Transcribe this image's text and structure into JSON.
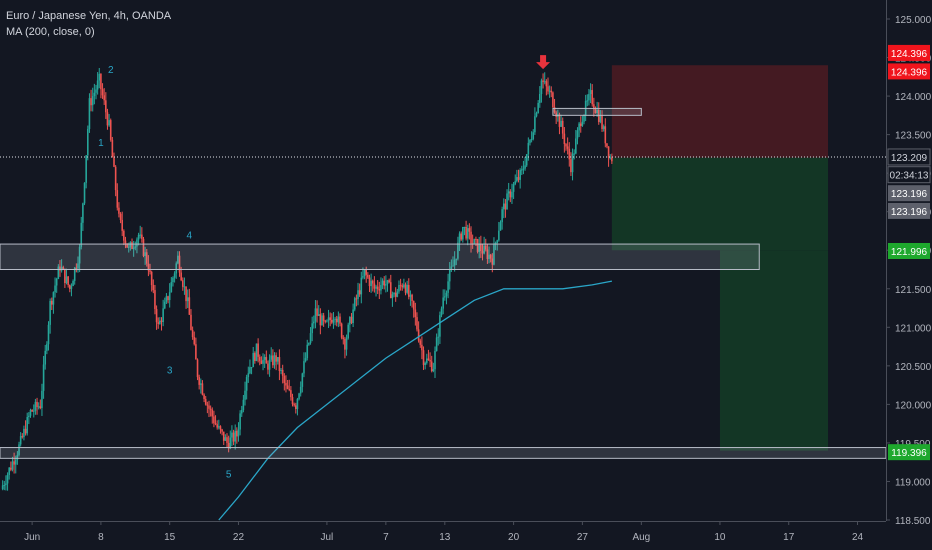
{
  "header": {
    "title": "Euro / Japanese Yen, 4h, OANDA",
    "indicator": "MA (200, close, 0)"
  },
  "colors": {
    "background": "#131722",
    "up": "#26a69a",
    "down": "#ef5350",
    "ma": "#2aa6c8",
    "grid_text": "#b2b5be",
    "stop_zone": "#4a1b22",
    "target_zone": "#143a26",
    "label_red": "#f0141c",
    "label_green": "#1ea82d",
    "label_dark": "#131722",
    "label_gray": "#5d606b"
  },
  "chart_data": {
    "type": "candlestick",
    "symbol": "EURJPY",
    "timeframe": "4h",
    "source": "OANDA",
    "y_axis": {
      "ticks": [
        "118.500",
        "119.000",
        "119.500",
        "120.000",
        "120.500",
        "121.000",
        "121.500",
        "122.000",
        "122.500",
        "123.000",
        "123.500",
        "124.000",
        "124.500",
        "125.000"
      ],
      "ylim": [
        118.5,
        125.25
      ],
      "position": "right"
    },
    "x_axis": {
      "ticks": [
        {
          "label": "Jun",
          "day": 1
        },
        {
          "label": "8",
          "day": 8
        },
        {
          "label": "15",
          "day": 15
        },
        {
          "label": "22",
          "day": 22
        },
        {
          "label": "Jul",
          "day": 31
        },
        {
          "label": "7",
          "day": 37
        },
        {
          "label": "13",
          "day": 43
        },
        {
          "label": "20",
          "day": 50
        },
        {
          "label": "27",
          "day": 57
        },
        {
          "label": "Aug",
          "day": 63
        },
        {
          "label": "10",
          "day": 71
        },
        {
          "label": "17",
          "day": 78
        },
        {
          "label": "24",
          "day": 85
        }
      ]
    },
    "price_path": [
      [
        -2,
        118.9
      ],
      [
        0,
        119.5
      ],
      [
        1,
        119.9
      ],
      [
        2,
        120.0
      ],
      [
        3,
        121.3
      ],
      [
        4,
        121.8
      ],
      [
        5,
        121.5
      ],
      [
        6,
        122.0
      ],
      [
        7,
        123.9
      ],
      [
        8,
        124.2
      ],
      [
        9,
        123.6
      ],
      [
        10,
        122.4
      ],
      [
        11,
        122.0
      ],
      [
        12,
        122.2
      ],
      [
        13,
        121.8
      ],
      [
        14,
        121.0
      ],
      [
        15,
        121.4
      ],
      [
        16,
        121.9
      ],
      [
        17,
        121.3
      ],
      [
        18,
        120.4
      ],
      [
        19,
        120.0
      ],
      [
        20,
        119.7
      ],
      [
        21,
        119.5
      ],
      [
        22,
        119.6
      ],
      [
        23,
        120.4
      ],
      [
        24,
        120.7
      ],
      [
        25,
        120.5
      ],
      [
        26,
        120.6
      ],
      [
        27,
        120.2
      ],
      [
        28,
        120.0
      ],
      [
        29,
        120.6
      ],
      [
        30,
        121.2
      ],
      [
        31,
        121.0
      ],
      [
        32,
        121.2
      ],
      [
        33,
        120.8
      ],
      [
        34,
        121.3
      ],
      [
        35,
        121.7
      ],
      [
        36,
        121.5
      ],
      [
        37,
        121.6
      ],
      [
        38,
        121.4
      ],
      [
        39,
        121.6
      ],
      [
        40,
        121.2
      ],
      [
        41,
        120.6
      ],
      [
        42,
        120.5
      ],
      [
        43,
        121.4
      ],
      [
        44,
        121.8
      ],
      [
        45,
        122.3
      ],
      [
        46,
        122.1
      ],
      [
        47,
        122.0
      ],
      [
        48,
        121.9
      ],
      [
        49,
        122.5
      ],
      [
        50,
        122.8
      ],
      [
        51,
        123.0
      ],
      [
        52,
        123.5
      ],
      [
        53,
        124.2
      ],
      [
        54,
        124.0
      ],
      [
        55,
        123.6
      ],
      [
        56,
        123.1
      ],
      [
        57,
        123.7
      ],
      [
        58,
        124.0
      ],
      [
        59,
        123.7
      ],
      [
        60,
        123.2
      ]
    ],
    "moving_average": {
      "name": "MA (200, close, 0)",
      "points": [
        [
          20,
          118.5
        ],
        [
          22,
          118.8
        ],
        [
          25,
          119.3
        ],
        [
          28,
          119.7
        ],
        [
          31,
          120.0
        ],
        [
          34,
          120.3
        ],
        [
          37,
          120.6
        ],
        [
          40,
          120.85
        ],
        [
          43,
          121.1
        ],
        [
          46,
          121.35
        ],
        [
          49,
          121.5
        ],
        [
          52,
          121.5
        ],
        [
          55,
          121.5
        ],
        [
          58,
          121.55
        ],
        [
          60,
          121.6
        ]
      ]
    },
    "zones": [
      {
        "name": "resistance-zone",
        "x_from": -3,
        "x_to": 75,
        "y_from": 121.75,
        "y_to": 122.08
      },
      {
        "name": "support-zone",
        "x_from": -3,
        "x_to": 90,
        "y_from": 119.3,
        "y_to": 119.44
      },
      {
        "name": "small-zone",
        "x_from": 54,
        "x_to": 63,
        "y_from": 123.75,
        "y_to": 123.84
      }
    ],
    "positions": [
      {
        "name": "stop-zone",
        "x_from": 60,
        "x_to": 82,
        "y_from": 123.2,
        "y_to": 124.4
      },
      {
        "name": "target-zone-1",
        "x_from": 60,
        "x_to": 82,
        "y_from": 122.0,
        "y_to": 123.2
      },
      {
        "name": "target-zone-2",
        "x_from": 71,
        "x_to": 82,
        "y_from": 119.4,
        "y_to": 122.0
      }
    ],
    "current_price": 123.209,
    "wave_labels": [
      {
        "text": "1",
        "day": 8,
        "price": 123.35
      },
      {
        "text": "2",
        "day": 9,
        "price": 124.3
      },
      {
        "text": "3",
        "day": 15,
        "price": 120.4
      },
      {
        "text": "4",
        "day": 17,
        "price": 122.15
      },
      {
        "text": "5",
        "day": 21,
        "price": 119.05
      }
    ],
    "marker": {
      "name": "sell-arrow",
      "day": 53,
      "price": 124.35
    },
    "price_labels": [
      {
        "text": "124.396",
        "price": 124.56,
        "style": "red"
      },
      {
        "text": "124.396",
        "price": 124.32,
        "style": "red"
      },
      {
        "text": "123.209",
        "price": 123.21,
        "style": "dark"
      },
      {
        "text": "02:34:13",
        "price": 122.98,
        "style": "dark"
      },
      {
        "text": "123.196",
        "price": 122.74,
        "style": "gray"
      },
      {
        "text": "123.196",
        "price": 122.51,
        "style": "gray"
      },
      {
        "text": "121.996",
        "price": 121.99,
        "style": "green"
      },
      {
        "text": "119.396",
        "price": 119.38,
        "style": "green"
      }
    ]
  }
}
